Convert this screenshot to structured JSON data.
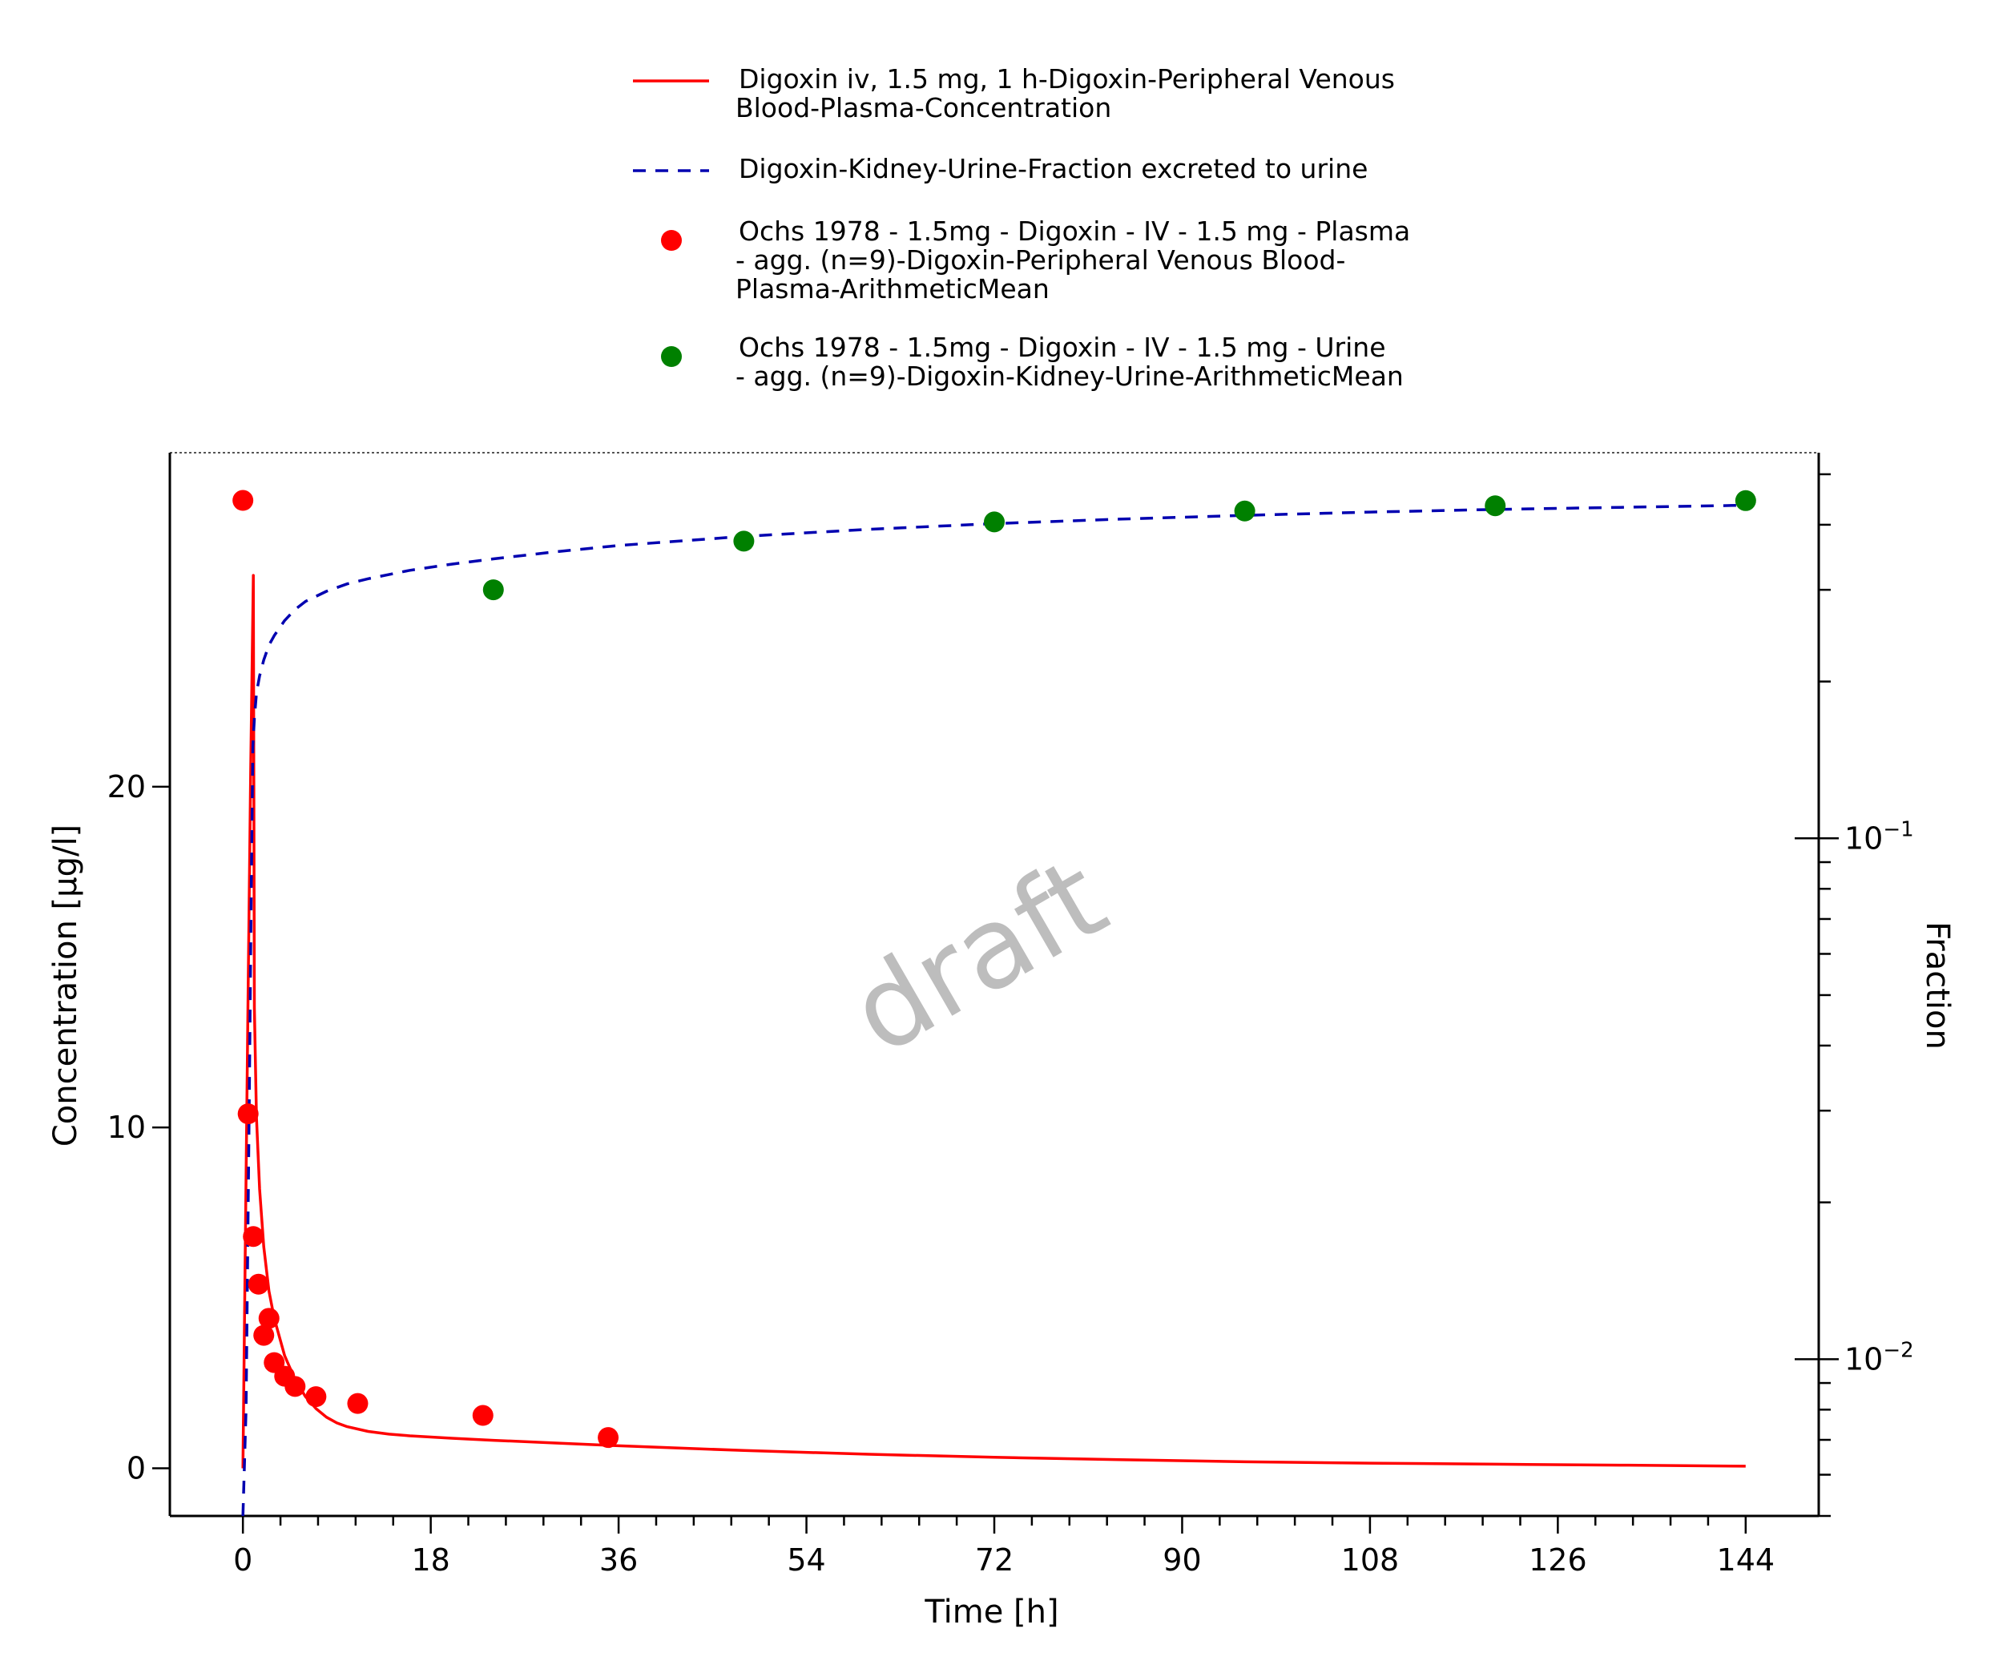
{
  "chart_data": {
    "type": "line",
    "title": "",
    "watermark": "draft",
    "xlabel": "Time [h]",
    "ylabel": "Concentration [µg/l]",
    "y2label": "Fraction",
    "xlim": [
      -7,
      151
    ],
    "ylim": [
      -1.4,
      29.8
    ],
    "y2lim": [
      0.005,
      0.55
    ],
    "y2scale": "log",
    "x_ticks": [
      0,
      18,
      36,
      54,
      72,
      90,
      108,
      126,
      144
    ],
    "y_ticks": [
      0,
      10,
      20
    ],
    "y2_ticks": [
      {
        "value": 0.1,
        "base": "10",
        "exp": "−1"
      },
      {
        "value": 0.01,
        "base": "10",
        "exp": "−2"
      }
    ],
    "legend_position": "top",
    "colors": {
      "plasma_sim": "#ff0000",
      "urine_sim": "#0000b0",
      "plasma_obs": "#ff0000",
      "urine_obs": "#008000"
    },
    "legend": [
      {
        "kind": "line",
        "color": "#ff0000",
        "lines": [
          "Digoxin iv, 1.5 mg, 1 h-Digoxin-Peripheral Venous",
          "Blood-Plasma-Concentration"
        ]
      },
      {
        "kind": "dash",
        "color": "#0000b0",
        "lines": [
          "Digoxin-Kidney-Urine-Fraction excreted to urine"
        ]
      },
      {
        "kind": "dot",
        "color": "#ff0000",
        "lines": [
          "Ochs 1978 - 1.5mg - Digoxin - IV - 1.5 mg - Plasma",
          "- agg. (n=9)-Digoxin-Peripheral Venous Blood-",
          "Plasma-ArithmeticMean"
        ]
      },
      {
        "kind": "dot",
        "color": "#008000",
        "lines": [
          "Ochs 1978 - 1.5mg - Digoxin - IV - 1.5 mg - Urine",
          "- agg. (n=9)-Digoxin-Kidney-Urine-ArithmeticMean"
        ]
      }
    ],
    "series": [
      {
        "axis": "left",
        "style": "line",
        "x": [
          0,
          0.25,
          0.5,
          0.75,
          1,
          1.1,
          1.3,
          1.6,
          2,
          2.5,
          3,
          4,
          5,
          6,
          7,
          8,
          9,
          10,
          12,
          14,
          16,
          20,
          24,
          30,
          36,
          48,
          60,
          72,
          84,
          96,
          108,
          120,
          132,
          144
        ],
        "y": [
          0,
          7,
          14,
          20.5,
          26.2,
          13.5,
          10.3,
          8.2,
          6.5,
          5.2,
          4.4,
          3.3,
          2.6,
          2.1,
          1.75,
          1.5,
          1.33,
          1.22,
          1.08,
          1.0,
          0.95,
          0.88,
          0.82,
          0.74,
          0.66,
          0.52,
          0.41,
          0.32,
          0.25,
          0.19,
          0.15,
          0.12,
          0.09,
          0.06
        ]
      },
      {
        "axis": "right",
        "style": "dash",
        "x": [
          0,
          0.3,
          0.6,
          0.8,
          0.95,
          1.1,
          1.3,
          1.6,
          2,
          2.5,
          3,
          4,
          5,
          6,
          8,
          10,
          12,
          16,
          20,
          24,
          30,
          36,
          48,
          60,
          72,
          84,
          96,
          108,
          120,
          132,
          144
        ],
        "y": [
          0.005,
          0.008,
          0.03,
          0.08,
          0.15,
          0.17,
          0.19,
          0.205,
          0.22,
          0.235,
          0.245,
          0.262,
          0.275,
          0.285,
          0.298,
          0.308,
          0.315,
          0.327,
          0.336,
          0.344,
          0.355,
          0.365,
          0.38,
          0.392,
          0.402,
          0.41,
          0.417,
          0.423,
          0.428,
          0.432,
          0.436
        ]
      },
      {
        "axis": "left",
        "style": "dot",
        "x": [
          0,
          0.5,
          1,
          1.5,
          2,
          2.5,
          3,
          4,
          5,
          7,
          11,
          23,
          35
        ],
        "y": [
          28.4,
          10.4,
          6.8,
          5.4,
          3.9,
          4.4,
          3.1,
          2.7,
          2.4,
          2.1,
          1.9,
          1.55,
          0.9
        ]
      },
      {
        "axis": "right",
        "style": "dot",
        "x": [
          24,
          48,
          72,
          96,
          120,
          144
        ],
        "y": [
          0.3,
          0.372,
          0.405,
          0.425,
          0.435,
          0.445
        ]
      }
    ]
  }
}
